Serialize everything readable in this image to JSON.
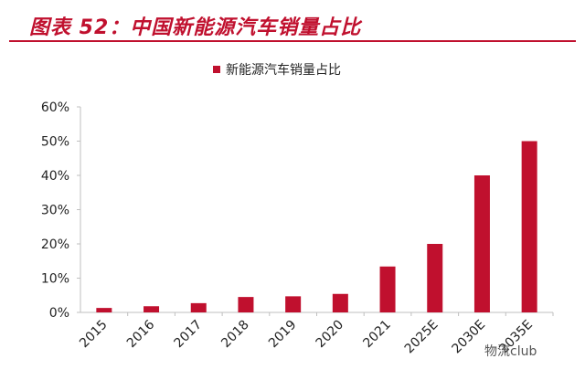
{
  "figure": {
    "title": "图表 52：中国新能源汽车销量占比"
  },
  "watermark": {
    "text": "物流club"
  },
  "colors": {
    "accent": "#c0102e",
    "bar": "#c0102e",
    "axis": "#bfbfbf",
    "text": "#222222"
  },
  "chart_data": {
    "type": "bar",
    "categories": [
      "2015",
      "2016",
      "2017",
      "2018",
      "2019",
      "2020",
      "2021",
      "2025E",
      "2030E",
      "2035E"
    ],
    "series": [
      {
        "name": "新能源汽车销量占比",
        "values": [
          1.3,
          1.8,
          2.7,
          4.5,
          4.7,
          5.4,
          13.4,
          20,
          40,
          50
        ]
      }
    ],
    "ylim": [
      0,
      60
    ],
    "yticks": [
      "0%",
      "10%",
      "20%",
      "30%",
      "40%",
      "50%",
      "60%"
    ],
    "legend_position": "top-center",
    "grid": false,
    "xlabel": "",
    "ylabel": ""
  }
}
